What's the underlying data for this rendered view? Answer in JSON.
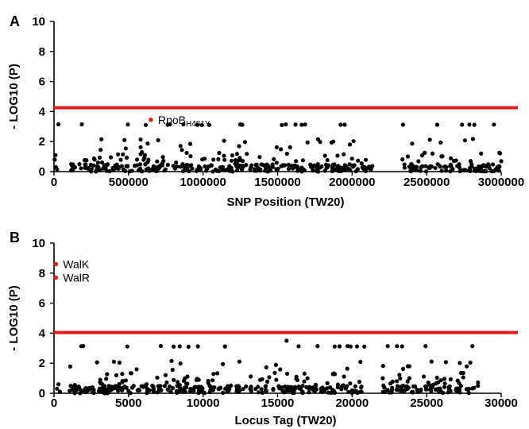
{
  "chart_data": [
    {
      "type": "scatter",
      "panel_label": "A",
      "xlabel": "SNP Position (TW20)",
      "ylabel": "- LOG10 (P)",
      "xlim": [
        0,
        3000000
      ],
      "ylim": [
        0,
        10
      ],
      "x_ticks": [
        0,
        500000,
        1000000,
        1500000,
        2000000,
        2500000,
        3000000
      ],
      "y_ticks": [
        0,
        2,
        4,
        6,
        8,
        10
      ],
      "threshold": 4.25,
      "threshold_color": "#e41a1c",
      "point_color": "#000000",
      "highlight_color": "#e41a1c",
      "highlights": [
        {
          "x": 650000,
          "y": 3.45,
          "label_main": "RpoB",
          "label_sub": "H481Y"
        }
      ],
      "bands": [
        {
          "x_start": 110000,
          "x_end": 2150000,
          "top_values": [
            3.15,
            2.05,
            1.3
          ]
        },
        {
          "x_start": 2330000,
          "x_end": 3000000,
          "top_values": [
            3.15,
            2.2,
            1.2
          ]
        }
      ],
      "isolated": [
        {
          "x": 5000,
          "y": 0.8
        },
        {
          "x": 10000,
          "y": 1.1
        },
        {
          "x": 12000,
          "y": 0.3
        },
        {
          "x": 30000,
          "y": 3.15
        },
        {
          "x": 20000,
          "y": 0.15
        }
      ]
    },
    {
      "type": "scatter",
      "panel_label": "B",
      "xlabel": "Locus Tag (TW20)",
      "ylabel": "- LOG10 (P)",
      "xlim": [
        0,
        30000
      ],
      "ylim": [
        0,
        10
      ],
      "x_ticks": [
        0,
        5000,
        10000,
        15000,
        20000,
        25000,
        30000
      ],
      "y_ticks": [
        0,
        2,
        4,
        6,
        8,
        10
      ],
      "threshold": 4.05,
      "threshold_color": "#e41a1c",
      "point_color": "#000000",
      "highlight_color": "#e41a1c",
      "highlights": [
        {
          "x": 120,
          "y": 8.6,
          "label_main": "WalK",
          "label_sub": ""
        },
        {
          "x": 120,
          "y": 7.7,
          "label_main": "WalR",
          "label_sub": ""
        }
      ],
      "bands": [
        {
          "x_start": 1000,
          "x_end": 21000,
          "top_values": [
            3.15,
            2.1,
            1.3
          ]
        },
        {
          "x_start": 22000,
          "x_end": 28500,
          "top_values": [
            3.15,
            2.2,
            1.3
          ]
        }
      ],
      "isolated": [
        {
          "x": 200,
          "y": 0.3
        },
        {
          "x": 300,
          "y": 0.6
        },
        {
          "x": 15600,
          "y": 3.5
        },
        {
          "x": 400,
          "y": 0.1
        }
      ]
    }
  ]
}
